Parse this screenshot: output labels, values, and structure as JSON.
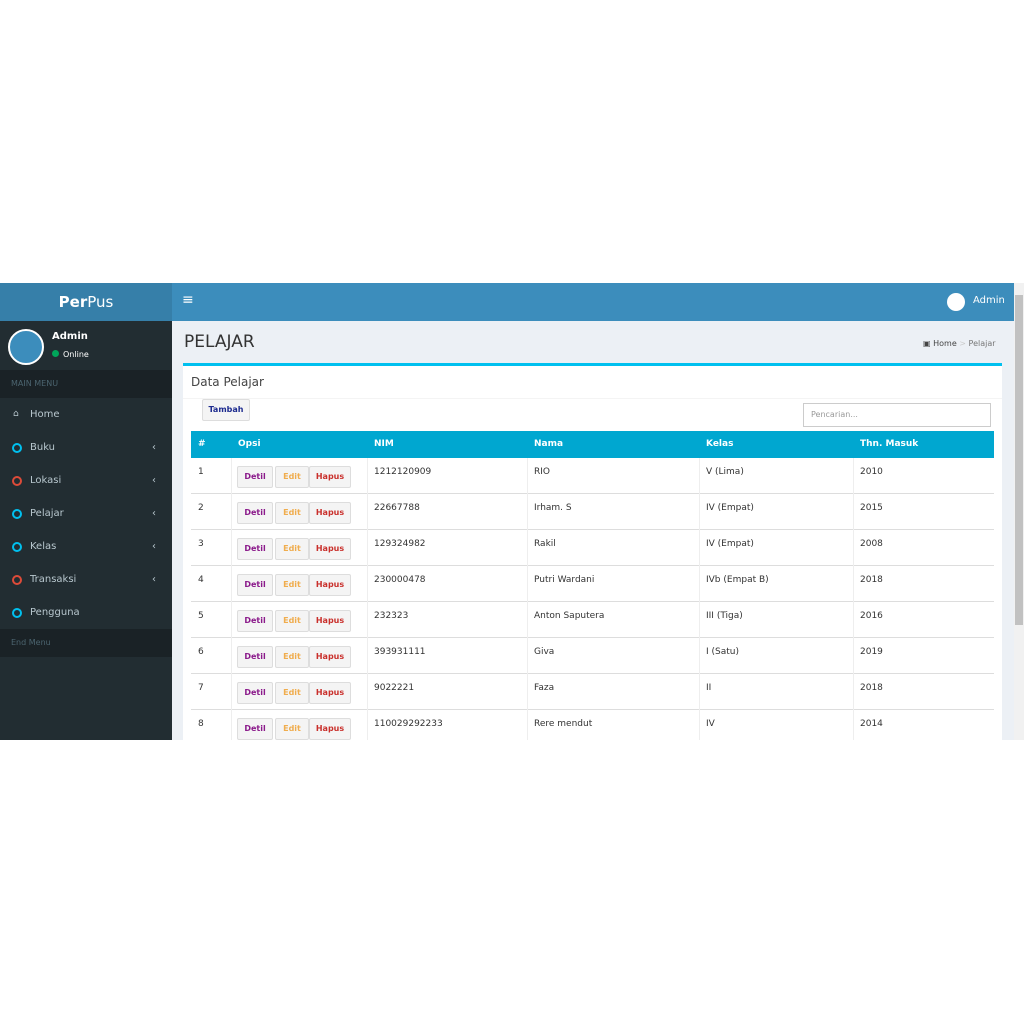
{
  "brand": {
    "bold": "Per",
    "light": "Pus"
  },
  "user": {
    "name": "Admin",
    "status": "Online"
  },
  "sidebar": {
    "header": "MAIN MENU",
    "items": [
      "Home",
      "Buku",
      "Lokasi",
      "Pelajar",
      "Kelas",
      "Transaksi",
      "Pengguna"
    ],
    "footer": "End Menu"
  },
  "topbar": {
    "user": "Admin"
  },
  "page": {
    "title": "PELAJAR",
    "breadcrumb": [
      "Home",
      "Pelajar"
    ]
  },
  "box": {
    "title": "Data Pelajar",
    "add_button": "Tambah",
    "search_placeholder": "Pencarian..."
  },
  "table": {
    "headers": [
      "#",
      "Opsi",
      "NIM",
      "Nama",
      "Kelas",
      "Thn. Masuk"
    ],
    "actions": [
      "Detil",
      "Edit",
      "Hapus"
    ],
    "rows": [
      [
        "1",
        "1212120909",
        "RIO",
        "V (Lima)",
        "2010"
      ],
      [
        "2",
        "22667788",
        "Irham. S",
        "IV (Empat)",
        "2015"
      ],
      [
        "3",
        "129324982",
        "Rakil",
        "IV (Empat)",
        "2008"
      ],
      [
        "4",
        "230000478",
        "Putri Wardani",
        "IVb (Empat B)",
        "2018"
      ],
      [
        "5",
        "232323",
        "Anton Saputera",
        "III (Tiga)",
        "2016"
      ],
      [
        "6",
        "393931111",
        "Giva",
        "I (Satu)",
        "2019"
      ],
      [
        "7",
        "9022221",
        "Faza",
        "II",
        "2018"
      ],
      [
        "8",
        "110029292233",
        "Rere mendut",
        "IV",
        "2014"
      ]
    ]
  }
}
